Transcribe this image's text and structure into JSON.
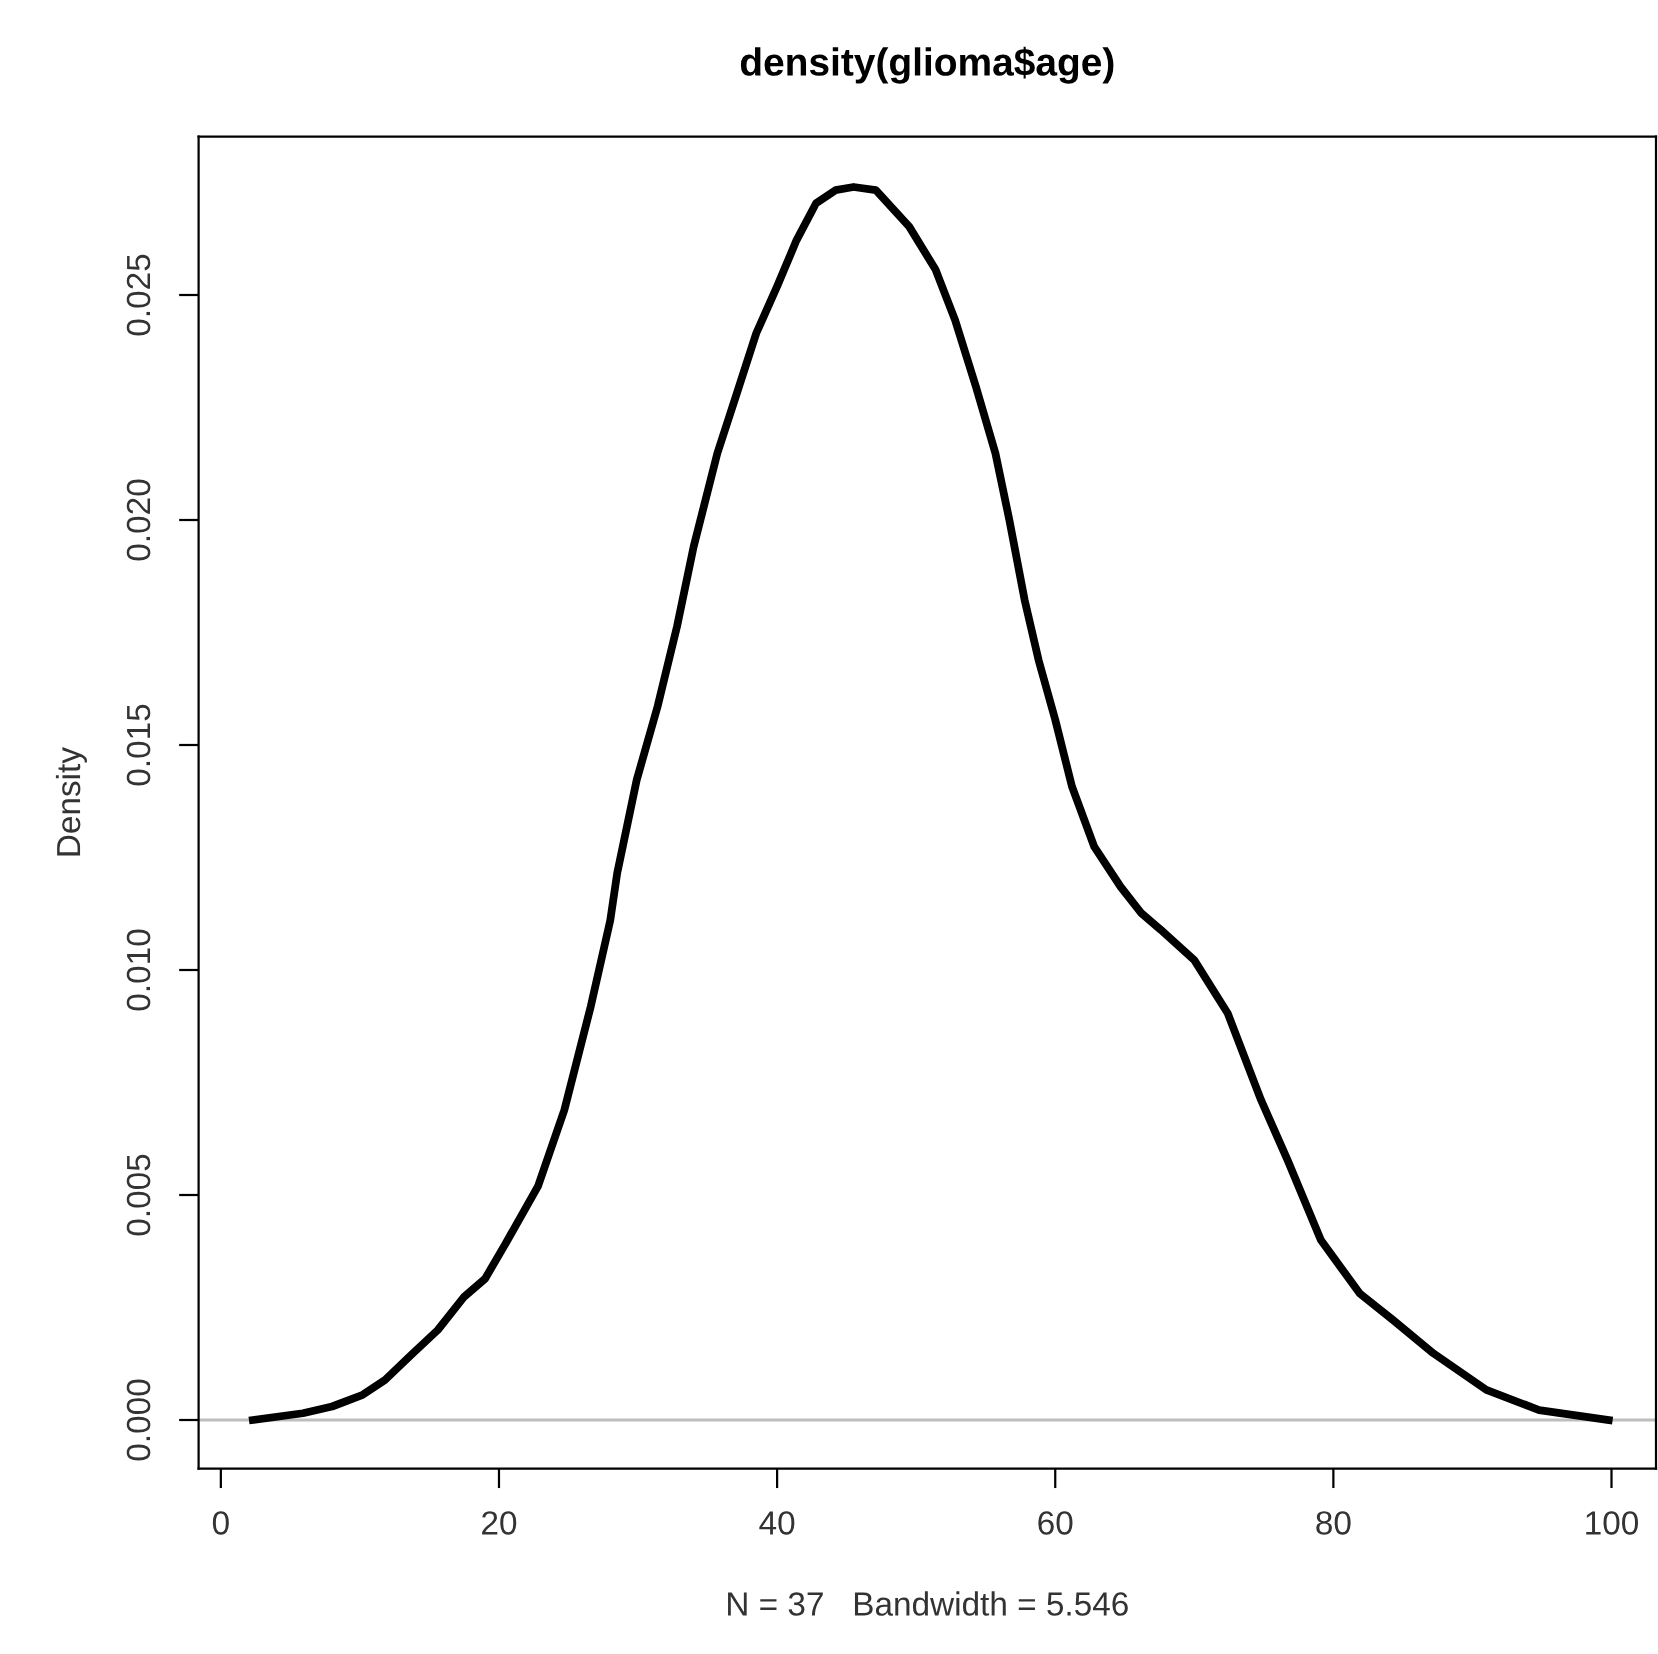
{
  "chart_data": {
    "type": "line",
    "title": "density(glioma$age)",
    "xlabel": "N = 37   Bandwidth = 5.546",
    "ylabel": "Density",
    "x": [
      2.3,
      5.9,
      8.0,
      10.2,
      11.8,
      13.7,
      15.6,
      17.5,
      19.0,
      20.4,
      22.8,
      24.7,
      26.6,
      28.0,
      28.5,
      29.9,
      31.4,
      32.8,
      34.0,
      35.7,
      37.1,
      38.5,
      40.0,
      41.4,
      42.8,
      44.2,
      45.5,
      47.1,
      49.5,
      51.4,
      52.8,
      54.3,
      55.7,
      56.7,
      57.8,
      58.8,
      60.0,
      61.2,
      62.8,
      64.7,
      66.2,
      67.6,
      70.0,
      72.4,
      74.8,
      76.7,
      79.1,
      81.9,
      84.3,
      87.2,
      91.0,
      94.8,
      99.8
    ],
    "series": [
      {
        "color": "#000000",
        "values": [
          0.0,
          0.00015,
          0.0003,
          0.00056,
          0.00089,
          0.00145,
          0.002,
          0.00274,
          0.00314,
          0.00388,
          0.00519,
          0.00689,
          0.00919,
          0.0111,
          0.01215,
          0.01422,
          0.01585,
          0.01763,
          0.01941,
          0.02148,
          0.02281,
          0.02415,
          0.02519,
          0.02622,
          0.02704,
          0.02733,
          0.0274,
          0.02733,
          0.02652,
          0.02556,
          0.02444,
          0.02296,
          0.02148,
          0.02,
          0.01822,
          0.01689,
          0.01556,
          0.01408,
          0.01274,
          0.01185,
          0.01126,
          0.01089,
          0.01022,
          0.00904,
          0.00711,
          0.00578,
          0.004,
          0.00281,
          0.00222,
          0.00148,
          0.00067,
          0.00022,
          0.0
        ]
      }
    ],
    "xlim": [
      -1.6,
      103.2
    ],
    "ylim": [
      -0.00108,
      0.02852
    ],
    "xticks": [
      0,
      20,
      40,
      60,
      80,
      100
    ],
    "yticks": [
      {
        "value": 0,
        "label": "0.000"
      },
      {
        "value": 0.005,
        "label": "0.005"
      },
      {
        "value": 0.01,
        "label": "0.010"
      },
      {
        "value": 0.015,
        "label": "0.015"
      },
      {
        "value": 0.02,
        "label": "0.020"
      },
      {
        "value": 0.025,
        "label": "0.025"
      }
    ],
    "ref_lines": [
      {
        "axis": "y",
        "value": 0,
        "color": "#bebebe"
      }
    ],
    "grid": false,
    "legend": false,
    "marker": "none",
    "line_style": "solid"
  }
}
